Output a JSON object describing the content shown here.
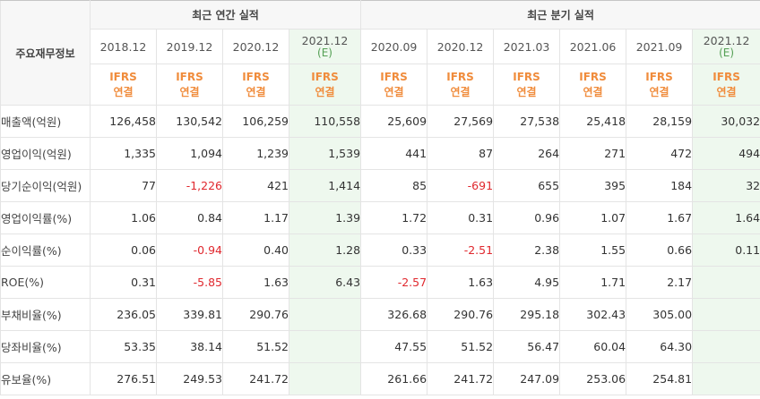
{
  "table": {
    "label_header": "주요재무정보",
    "annual_group": "최근 연간 실적",
    "quarter_group": "최근 분기 실적",
    "periods": [
      {
        "date": "2018.12",
        "est": ""
      },
      {
        "date": "2019.12",
        "est": ""
      },
      {
        "date": "2020.12",
        "est": ""
      },
      {
        "date": "2021.12",
        "est": "(E)"
      },
      {
        "date": "2020.09",
        "est": ""
      },
      {
        "date": "2020.12",
        "est": ""
      },
      {
        "date": "2021.03",
        "est": ""
      },
      {
        "date": "2021.06",
        "est": ""
      },
      {
        "date": "2021.09",
        "est": ""
      },
      {
        "date": "2021.12",
        "est": "(E)"
      }
    ],
    "ifrs_label": "IFRS",
    "ifrs_sub": "연결",
    "rows": [
      {
        "label": "매출액(억원)",
        "values": [
          "126,458",
          "130,542",
          "106,259",
          "110,558",
          "25,609",
          "27,569",
          "27,538",
          "25,418",
          "28,159",
          "30,032"
        ]
      },
      {
        "label": "영업이익(억원)",
        "values": [
          "1,335",
          "1,094",
          "1,239",
          "1,539",
          "441",
          "87",
          "264",
          "271",
          "472",
          "494"
        ]
      },
      {
        "label": "당기순이익(억원)",
        "values": [
          "77",
          "-1,226",
          "421",
          "1,414",
          "85",
          "-691",
          "655",
          "395",
          "184",
          "32"
        ]
      },
      {
        "label": "영업이익률(%)",
        "values": [
          "1.06",
          "0.84",
          "1.17",
          "1.39",
          "1.72",
          "0.31",
          "0.96",
          "1.07",
          "1.67",
          "1.64"
        ]
      },
      {
        "label": "순이익률(%)",
        "values": [
          "0.06",
          "-0.94",
          "0.40",
          "1.28",
          "0.33",
          "-2.51",
          "2.38",
          "1.55",
          "0.66",
          "0.11"
        ]
      },
      {
        "label": "ROE(%)",
        "values": [
          "0.31",
          "-5.85",
          "1.63",
          "6.43",
          "-2.57",
          "1.63",
          "4.95",
          "1.71",
          "2.17",
          ""
        ]
      },
      {
        "label": "부채비율(%)",
        "values": [
          "236.05",
          "339.81",
          "290.76",
          "",
          "326.68",
          "290.76",
          "295.18",
          "302.43",
          "305.00",
          ""
        ]
      },
      {
        "label": "당좌비율(%)",
        "values": [
          "53.35",
          "38.14",
          "51.52",
          "",
          "47.55",
          "51.52",
          "56.47",
          "60.04",
          "64.30",
          ""
        ]
      },
      {
        "label": "유보율(%)",
        "values": [
          "276.51",
          "249.53",
          "241.72",
          "",
          "261.66",
          "241.72",
          "247.09",
          "253.06",
          "254.81",
          ""
        ]
      }
    ]
  }
}
